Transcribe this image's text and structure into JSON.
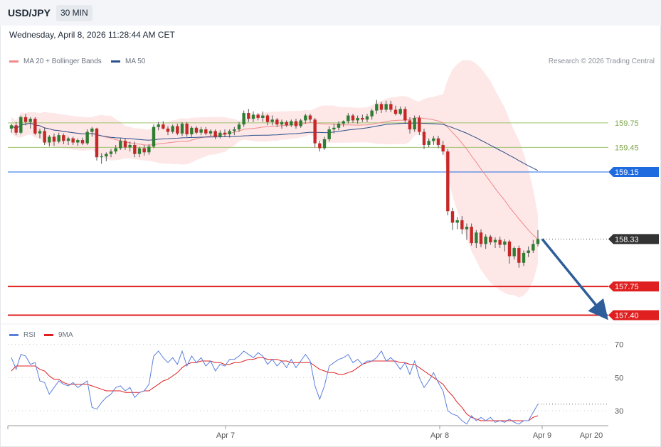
{
  "header": {
    "symbol": "USD/JPY",
    "interval": "30 MIN"
  },
  "timestamp": "Wednesday, April 8, 2026 11:28:44 AM CET",
  "legend": {
    "ma20_label": "MA 20 + Bollinger Bands",
    "ma20_color": "#f08a8a",
    "ma50_label": "MA 50",
    "ma50_color": "#2b4f8a",
    "rsi_label": "RSI",
    "rsi_color": "#5b7fde",
    "rsi_ma_label": "9MA",
    "rsi_ma_color": "#e02020"
  },
  "copyright": "Research © 2026 Trading Central",
  "chart_data": [
    {
      "type": "candlestick",
      "title": "",
      "ylim": [
        157.3,
        160.6
      ],
      "levels": [
        {
          "label": "159.75",
          "value": 159.75,
          "style": "support-resistance",
          "color": "#9dc36a"
        },
        {
          "label": "159.45",
          "value": 159.45,
          "style": "support-resistance",
          "color": "#9dc36a"
        },
        {
          "label": "159.15",
          "value": 159.15,
          "style": "key-level",
          "color": "#1e6be0"
        },
        {
          "label": "158.33",
          "value": 158.33,
          "style": "last-price",
          "color": "#333333"
        },
        {
          "label": "157.75",
          "value": 157.75,
          "style": "target",
          "color": "#e02020"
        },
        {
          "label": "157.40",
          "value": 157.4,
          "style": "target",
          "color": "#e02020"
        }
      ],
      "projection": {
        "direction": "down",
        "from": 158.33,
        "to": 157.4,
        "color": "#2f5d9a"
      },
      "candles": [
        [
          159.68,
          159.74,
          159.63,
          159.72
        ],
        [
          159.72,
          159.76,
          159.6,
          159.63
        ],
        [
          159.63,
          159.84,
          159.61,
          159.82
        ],
        [
          159.82,
          159.86,
          159.72,
          159.76
        ],
        [
          159.76,
          159.82,
          159.68,
          159.8
        ],
        [
          159.8,
          159.82,
          159.6,
          159.62
        ],
        [
          159.62,
          159.68,
          159.56,
          159.65
        ],
        [
          159.65,
          159.69,
          159.48,
          159.51
        ],
        [
          159.51,
          159.6,
          159.46,
          159.58
        ],
        [
          159.58,
          159.62,
          159.47,
          159.52
        ],
        [
          159.52,
          159.63,
          159.5,
          159.6
        ],
        [
          159.6,
          159.62,
          159.49,
          159.53
        ],
        [
          159.53,
          159.58,
          159.48,
          159.56
        ],
        [
          159.56,
          159.58,
          159.48,
          159.51
        ],
        [
          159.51,
          159.56,
          159.47,
          159.54
        ],
        [
          159.54,
          159.57,
          159.48,
          159.5
        ],
        [
          159.5,
          159.67,
          159.48,
          159.64
        ],
        [
          159.64,
          159.7,
          159.58,
          159.68
        ],
        [
          159.68,
          159.69,
          159.29,
          159.33
        ],
        [
          159.33,
          159.38,
          159.25,
          159.34
        ],
        [
          159.34,
          159.39,
          159.28,
          159.37
        ],
        [
          159.37,
          159.43,
          159.33,
          159.4
        ],
        [
          159.4,
          159.48,
          159.37,
          159.44
        ],
        [
          159.44,
          159.56,
          159.42,
          159.53
        ],
        [
          159.53,
          159.56,
          159.42,
          159.45
        ],
        [
          159.45,
          159.52,
          159.4,
          159.48
        ],
        [
          159.48,
          159.52,
          159.33,
          159.37
        ],
        [
          159.37,
          159.46,
          159.33,
          159.44
        ],
        [
          159.44,
          159.48,
          159.35,
          159.39
        ],
        [
          159.39,
          159.49,
          159.36,
          159.46
        ],
        [
          159.46,
          159.73,
          159.44,
          159.7
        ],
        [
          159.7,
          159.76,
          159.66,
          159.73
        ],
        [
          159.73,
          159.77,
          159.67,
          159.68
        ],
        [
          159.68,
          159.71,
          159.6,
          159.64
        ],
        [
          159.64,
          159.73,
          159.62,
          159.71
        ],
        [
          159.71,
          159.74,
          159.6,
          159.62
        ],
        [
          159.62,
          159.76,
          159.59,
          159.74
        ],
        [
          159.74,
          159.76,
          159.58,
          159.61
        ],
        [
          159.61,
          159.71,
          159.58,
          159.69
        ],
        [
          159.69,
          159.71,
          159.61,
          159.63
        ],
        [
          159.63,
          159.7,
          159.6,
          159.67
        ],
        [
          159.67,
          159.7,
          159.6,
          159.62
        ],
        [
          159.62,
          159.67,
          159.59,
          159.65
        ],
        [
          159.65,
          159.67,
          159.55,
          159.58
        ],
        [
          159.58,
          159.66,
          159.56,
          159.63
        ],
        [
          159.63,
          159.67,
          159.58,
          159.61
        ],
        [
          159.61,
          159.67,
          159.57,
          159.65
        ],
        [
          159.65,
          159.7,
          159.6,
          159.67
        ],
        [
          159.67,
          159.76,
          159.64,
          159.73
        ],
        [
          159.73,
          159.9,
          159.7,
          159.87
        ],
        [
          159.87,
          159.92,
          159.76,
          159.8
        ],
        [
          159.8,
          159.89,
          159.76,
          159.85
        ],
        [
          159.85,
          159.87,
          159.78,
          159.81
        ],
        [
          159.81,
          159.89,
          159.76,
          159.84
        ],
        [
          159.84,
          159.86,
          159.72,
          159.76
        ],
        [
          159.76,
          159.84,
          159.72,
          159.79
        ],
        [
          159.79,
          159.81,
          159.7,
          159.73
        ],
        [
          159.73,
          159.79,
          159.68,
          159.76
        ],
        [
          159.76,
          159.78,
          159.7,
          159.72
        ],
        [
          159.72,
          159.79,
          159.7,
          159.77
        ],
        [
          159.77,
          159.8,
          159.68,
          159.71
        ],
        [
          159.71,
          159.8,
          159.69,
          159.78
        ],
        [
          159.78,
          159.86,
          159.74,
          159.84
        ],
        [
          159.84,
          159.86,
          159.76,
          159.79
        ],
        [
          159.79,
          159.81,
          159.45,
          159.5
        ],
        [
          159.5,
          159.53,
          159.4,
          159.44
        ],
        [
          159.44,
          159.58,
          159.42,
          159.55
        ],
        [
          159.55,
          159.71,
          159.52,
          159.67
        ],
        [
          159.67,
          159.74,
          159.62,
          159.69
        ],
        [
          159.69,
          159.77,
          159.66,
          159.74
        ],
        [
          159.74,
          159.78,
          159.7,
          159.77
        ],
        [
          159.77,
          159.87,
          159.74,
          159.84
        ],
        [
          159.84,
          159.86,
          159.75,
          159.78
        ],
        [
          159.78,
          159.84,
          159.74,
          159.81
        ],
        [
          159.81,
          159.85,
          159.76,
          159.79
        ],
        [
          159.79,
          159.86,
          159.76,
          159.83
        ],
        [
          159.83,
          159.92,
          159.79,
          159.9
        ],
        [
          159.9,
          160.03,
          159.86,
          159.98
        ],
        [
          159.98,
          160.01,
          159.87,
          159.91
        ],
        [
          159.91,
          160.02,
          159.88,
          159.98
        ],
        [
          159.98,
          160.02,
          159.88,
          159.91
        ],
        [
          159.91,
          159.96,
          159.84,
          159.86
        ],
        [
          159.86,
          159.95,
          159.84,
          159.92
        ],
        [
          159.92,
          159.95,
          159.75,
          159.78
        ],
        [
          159.78,
          159.82,
          159.62,
          159.67
        ],
        [
          159.67,
          159.84,
          159.64,
          159.81
        ],
        [
          159.81,
          159.84,
          159.6,
          159.64
        ],
        [
          159.64,
          159.68,
          159.43,
          159.48
        ],
        [
          159.48,
          159.56,
          159.45,
          159.53
        ],
        [
          159.53,
          159.59,
          159.48,
          159.56
        ],
        [
          159.56,
          159.59,
          159.44,
          159.48
        ],
        [
          159.48,
          159.53,
          159.36,
          159.4
        ],
        [
          159.4,
          159.43,
          158.62,
          158.67
        ],
        [
          158.67,
          158.71,
          158.44,
          158.53
        ],
        [
          158.53,
          158.6,
          158.45,
          158.56
        ],
        [
          158.56,
          158.61,
          158.39,
          158.45
        ],
        [
          158.45,
          158.52,
          158.32,
          158.48
        ],
        [
          158.48,
          158.52,
          158.25,
          158.28
        ],
        [
          158.28,
          158.44,
          158.22,
          158.41
        ],
        [
          158.41,
          158.45,
          158.23,
          158.27
        ],
        [
          158.27,
          158.39,
          158.21,
          158.36
        ],
        [
          158.36,
          158.38,
          158.26,
          158.29
        ],
        [
          158.29,
          158.35,
          158.22,
          158.32
        ],
        [
          158.32,
          158.36,
          158.22,
          158.26
        ],
        [
          158.26,
          158.33,
          158.18,
          158.3
        ],
        [
          158.3,
          158.32,
          158.03,
          158.12
        ],
        [
          158.12,
          158.24,
          158.08,
          158.22
        ],
        [
          158.22,
          158.25,
          157.98,
          158.04
        ],
        [
          158.04,
          158.19,
          158.0,
          158.16
        ],
        [
          158.16,
          158.24,
          158.11,
          158.19
        ],
        [
          158.19,
          158.32,
          158.16,
          158.27
        ],
        [
          158.27,
          158.44,
          158.24,
          158.33
        ]
      ]
    },
    {
      "type": "line",
      "title": "RSI",
      "ylim": [
        18,
        78
      ],
      "y_ticks": [
        70,
        50,
        30
      ],
      "x_tick_labels": [
        "Apr 7",
        "Apr 8",
        "Apr 9",
        "Apr 20"
      ],
      "series": [
        {
          "name": "RSI",
          "values": [
            62,
            55,
            64,
            63,
            58,
            59,
            48,
            47,
            40,
            44,
            48,
            46,
            45,
            47,
            44,
            46,
            48,
            32,
            31,
            35,
            38,
            40,
            44,
            45,
            42,
            44,
            38,
            41,
            42,
            46,
            63,
            66,
            62,
            59,
            62,
            58,
            66,
            57,
            63,
            59,
            62,
            57,
            60,
            54,
            58,
            57,
            61,
            61,
            63,
            66,
            64,
            62,
            65,
            63,
            58,
            61,
            57,
            60,
            56,
            61,
            56,
            60,
            64,
            60,
            45,
            37,
            45,
            57,
            59,
            61,
            62,
            64,
            59,
            61,
            58,
            60,
            60,
            62,
            66,
            60,
            62,
            59,
            55,
            59,
            52,
            60,
            50,
            44,
            48,
            53,
            47,
            42,
            30,
            28,
            27,
            24,
            22,
            27,
            24,
            26,
            24,
            26,
            23,
            24,
            23,
            25,
            23,
            22,
            24,
            24,
            29,
            34
          ]
        },
        {
          "name": "9MA",
          "values": [
            54,
            57,
            57,
            57,
            57,
            57,
            55,
            54,
            51,
            49,
            49,
            47,
            46,
            46,
            46,
            46,
            46,
            45,
            44,
            43,
            42,
            42,
            42,
            42,
            41,
            41,
            41,
            41,
            42,
            42,
            44,
            46,
            48,
            49,
            51,
            53,
            56,
            58,
            59,
            59,
            60,
            60,
            60,
            59,
            59,
            58,
            58,
            59,
            59,
            60,
            61,
            61,
            62,
            62,
            61,
            61,
            61,
            60,
            60,
            59,
            59,
            59,
            59,
            59,
            57,
            55,
            54,
            53,
            53,
            52,
            52,
            53,
            54,
            56,
            58,
            59,
            60,
            60,
            60,
            60,
            60,
            60,
            59,
            59,
            58,
            58,
            56,
            54,
            52,
            50,
            48,
            46,
            42,
            39,
            35,
            32,
            28,
            26,
            25,
            24,
            24,
            24,
            24,
            24,
            24,
            24,
            24,
            24,
            24,
            24,
            26,
            27
          ]
        }
      ]
    }
  ]
}
